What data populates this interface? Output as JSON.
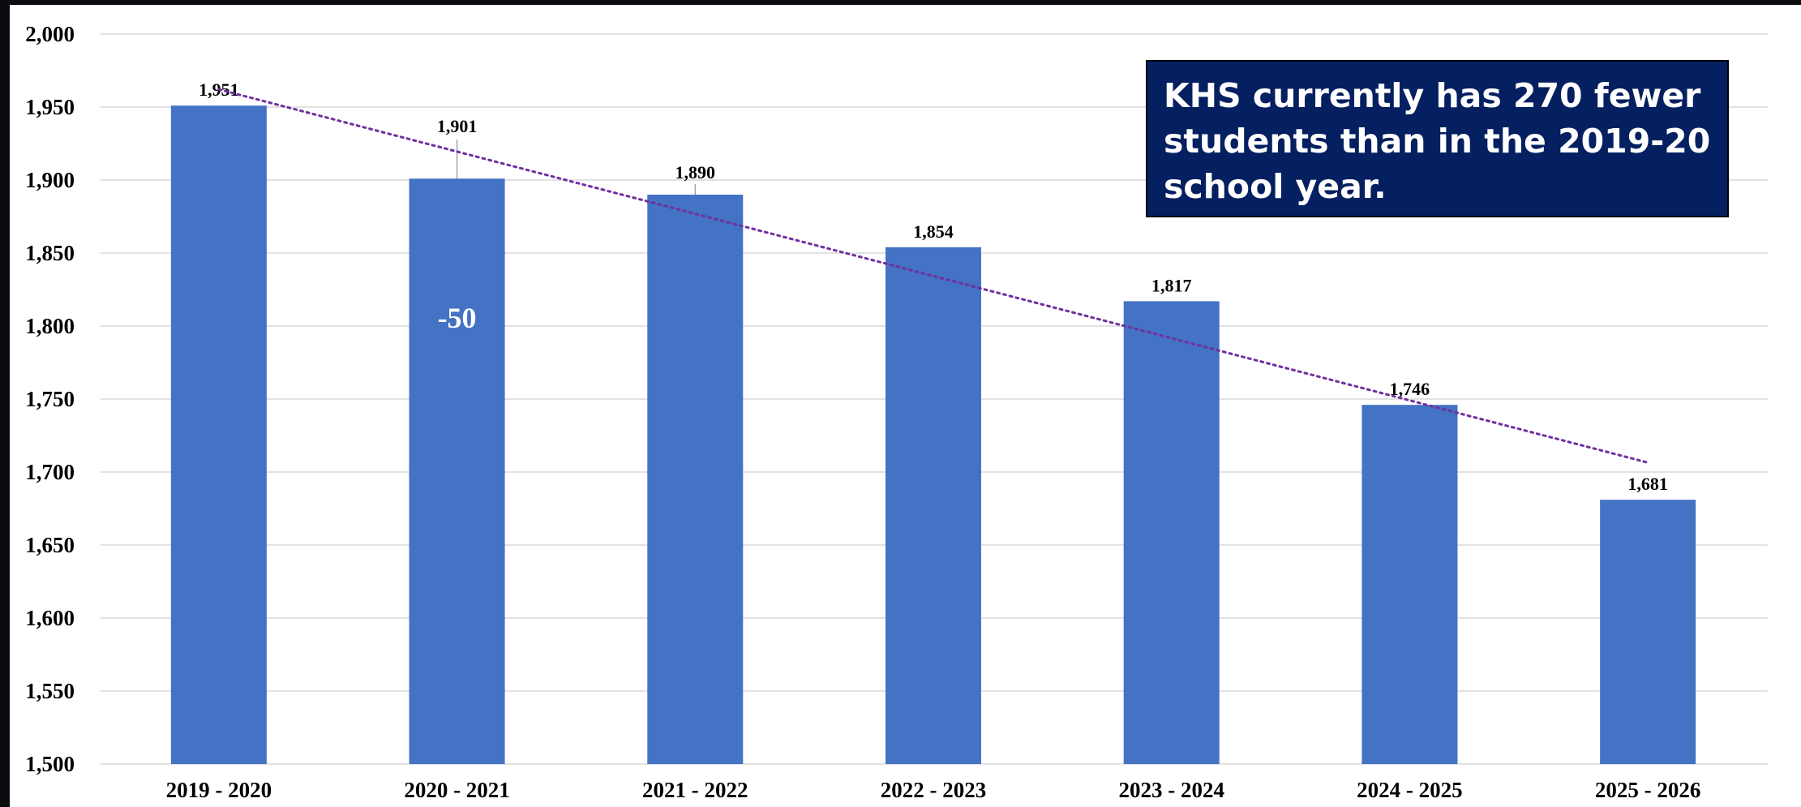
{
  "chart_data": {
    "type": "bar",
    "categories": [
      "2019 - 2020",
      "2020 - 2021",
      "2021 - 2022",
      "2022 - 2023",
      "2023 - 2024",
      "2024 - 2025",
      "2025 - 2026"
    ],
    "values": [
      1951,
      1901,
      1890,
      1854,
      1817,
      1746,
      1681
    ],
    "data_labels": [
      "1,951",
      "1,901",
      "1,890",
      "1,854",
      "1,817",
      "1,746",
      "1,681"
    ],
    "ylim": [
      1500,
      2000
    ],
    "yticks": [
      1500,
      1550,
      1600,
      1650,
      1700,
      1750,
      1800,
      1850,
      1900,
      1950,
      2000
    ],
    "ytick_labels": [
      "1,500",
      "1,550",
      "1,600",
      "1,650",
      "1,700",
      "1,750",
      "1,800",
      "1,850",
      "1,900",
      "1,950",
      "2,000"
    ],
    "grid": true,
    "trendline": {
      "type": "linear",
      "style": "dotted",
      "color": "#7030A0"
    },
    "bar_color": "#4472C4",
    "annotations": [
      {
        "category": "2020 - 2021",
        "text": "-50"
      }
    ],
    "callout": {
      "text": "KHS currently has 270 fewer students than in the 2019-20 school year.",
      "background": "#052060",
      "placement": "top-right"
    }
  }
}
